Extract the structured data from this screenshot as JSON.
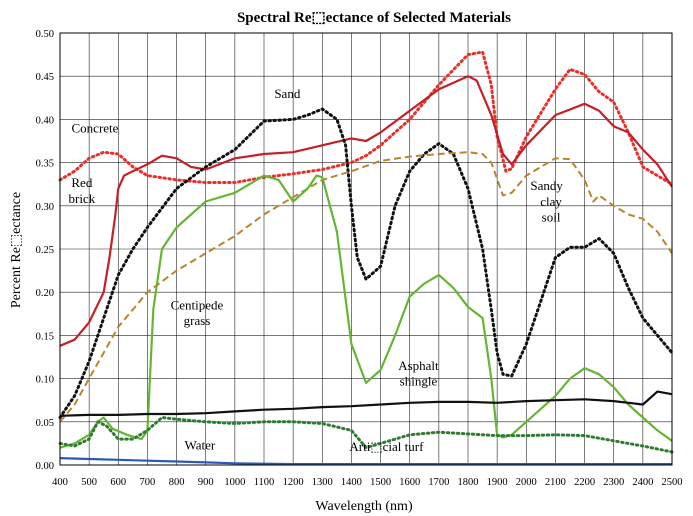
{
  "chart_data": {
    "type": "line",
    "title": "Spectral Re⬚ectance of Selected Materials",
    "xlabel": "Wavelength (nm)",
    "ylabel": "Percent Re⬚ectance",
    "xlim": [
      400,
      2500
    ],
    "ylim": [
      0,
      0.5
    ],
    "x_ticks": [
      400,
      500,
      600,
      700,
      800,
      900,
      1000,
      1100,
      1200,
      1300,
      1400,
      1500,
      1600,
      1700,
      1800,
      1900,
      2000,
      2100,
      2200,
      2300,
      2400,
      2500
    ],
    "y_ticks": [
      "0.00",
      "0.05",
      "0.10",
      "0.15",
      "0.20",
      "0.25",
      "0.30",
      "0.35",
      "0.40",
      "0.45",
      "0.50"
    ],
    "grid": true,
    "legend": "none",
    "series": [
      {
        "name": "Concrete",
        "color": "#e8302a",
        "style": "dotted",
        "points": [
          [
            400,
            0.33
          ],
          [
            450,
            0.34
          ],
          [
            500,
            0.355
          ],
          [
            550,
            0.362
          ],
          [
            600,
            0.36
          ],
          [
            650,
            0.345
          ],
          [
            700,
            0.335
          ],
          [
            800,
            0.33
          ],
          [
            900,
            0.327
          ],
          [
            1000,
            0.327
          ],
          [
            1100,
            0.333
          ],
          [
            1200,
            0.337
          ],
          [
            1300,
            0.342
          ],
          [
            1400,
            0.35
          ],
          [
            1450,
            0.358
          ],
          [
            1500,
            0.37
          ],
          [
            1600,
            0.4
          ],
          [
            1700,
            0.44
          ],
          [
            1800,
            0.475
          ],
          [
            1850,
            0.478
          ],
          [
            1880,
            0.44
          ],
          [
            1900,
            0.38
          ],
          [
            1930,
            0.34
          ],
          [
            1950,
            0.343
          ],
          [
            2000,
            0.38
          ],
          [
            2100,
            0.435
          ],
          [
            2150,
            0.458
          ],
          [
            2200,
            0.452
          ],
          [
            2250,
            0.432
          ],
          [
            2300,
            0.42
          ],
          [
            2350,
            0.385
          ],
          [
            2400,
            0.345
          ],
          [
            2450,
            0.335
          ],
          [
            2500,
            0.325
          ]
        ]
      },
      {
        "name": "Red brick",
        "color": "#c51f28",
        "style": "solid",
        "points": [
          [
            400,
            0.138
          ],
          [
            450,
            0.145
          ],
          [
            500,
            0.165
          ],
          [
            550,
            0.2
          ],
          [
            570,
            0.24
          ],
          [
            590,
            0.29
          ],
          [
            600,
            0.32
          ],
          [
            620,
            0.335
          ],
          [
            650,
            0.34
          ],
          [
            700,
            0.348
          ],
          [
            750,
            0.358
          ],
          [
            800,
            0.355
          ],
          [
            850,
            0.345
          ],
          [
            900,
            0.342
          ],
          [
            1000,
            0.355
          ],
          [
            1100,
            0.36
          ],
          [
            1200,
            0.362
          ],
          [
            1300,
            0.37
          ],
          [
            1400,
            0.378
          ],
          [
            1450,
            0.375
          ],
          [
            1500,
            0.385
          ],
          [
            1600,
            0.41
          ],
          [
            1700,
            0.435
          ],
          [
            1800,
            0.45
          ],
          [
            1830,
            0.445
          ],
          [
            1880,
            0.405
          ],
          [
            1920,
            0.36
          ],
          [
            1950,
            0.348
          ],
          [
            2000,
            0.37
          ],
          [
            2100,
            0.405
          ],
          [
            2200,
            0.418
          ],
          [
            2250,
            0.41
          ],
          [
            2300,
            0.392
          ],
          [
            2350,
            0.385
          ],
          [
            2400,
            0.365
          ],
          [
            2450,
            0.348
          ],
          [
            2500,
            0.322
          ]
        ]
      },
      {
        "name": "Sand",
        "color": "#111111",
        "style": "dotted",
        "points": [
          [
            400,
            0.055
          ],
          [
            450,
            0.08
          ],
          [
            500,
            0.12
          ],
          [
            550,
            0.17
          ],
          [
            600,
            0.22
          ],
          [
            650,
            0.25
          ],
          [
            700,
            0.275
          ],
          [
            800,
            0.32
          ],
          [
            900,
            0.345
          ],
          [
            1000,
            0.365
          ],
          [
            1100,
            0.398
          ],
          [
            1200,
            0.4
          ],
          [
            1250,
            0.405
          ],
          [
            1300,
            0.412
          ],
          [
            1350,
            0.4
          ],
          [
            1380,
            0.37
          ],
          [
            1400,
            0.3
          ],
          [
            1420,
            0.24
          ],
          [
            1450,
            0.215
          ],
          [
            1500,
            0.23
          ],
          [
            1550,
            0.3
          ],
          [
            1600,
            0.34
          ],
          [
            1650,
            0.36
          ],
          [
            1700,
            0.372
          ],
          [
            1750,
            0.36
          ],
          [
            1800,
            0.32
          ],
          [
            1850,
            0.25
          ],
          [
            1880,
            0.18
          ],
          [
            1900,
            0.13
          ],
          [
            1920,
            0.105
          ],
          [
            1950,
            0.103
          ],
          [
            2000,
            0.14
          ],
          [
            2050,
            0.19
          ],
          [
            2100,
            0.24
          ],
          [
            2150,
            0.252
          ],
          [
            2200,
            0.252
          ],
          [
            2250,
            0.262
          ],
          [
            2300,
            0.245
          ],
          [
            2350,
            0.205
          ],
          [
            2400,
            0.17
          ],
          [
            2450,
            0.15
          ],
          [
            2500,
            0.13
          ]
        ]
      },
      {
        "name": "Sandy clay soil",
        "color": "#b8862e",
        "style": "dashed",
        "points": [
          [
            400,
            0.05
          ],
          [
            450,
            0.07
          ],
          [
            500,
            0.1
          ],
          [
            550,
            0.13
          ],
          [
            600,
            0.16
          ],
          [
            650,
            0.18
          ],
          [
            700,
            0.2
          ],
          [
            800,
            0.225
          ],
          [
            900,
            0.245
          ],
          [
            1000,
            0.265
          ],
          [
            1100,
            0.29
          ],
          [
            1200,
            0.31
          ],
          [
            1300,
            0.33
          ],
          [
            1400,
            0.34
          ],
          [
            1500,
            0.352
          ],
          [
            1600,
            0.357
          ],
          [
            1700,
            0.36
          ],
          [
            1800,
            0.362
          ],
          [
            1850,
            0.36
          ],
          [
            1880,
            0.35
          ],
          [
            1920,
            0.312
          ],
          [
            1950,
            0.315
          ],
          [
            2000,
            0.335
          ],
          [
            2100,
            0.355
          ],
          [
            2150,
            0.354
          ],
          [
            2200,
            0.33
          ],
          [
            2230,
            0.305
          ],
          [
            2250,
            0.312
          ],
          [
            2300,
            0.3
          ],
          [
            2350,
            0.29
          ],
          [
            2400,
            0.285
          ],
          [
            2450,
            0.27
          ],
          [
            2500,
            0.245
          ]
        ]
      },
      {
        "name": "Centipede grass",
        "color": "#66b535",
        "style": "solid",
        "points": [
          [
            400,
            0.02
          ],
          [
            450,
            0.025
          ],
          [
            500,
            0.035
          ],
          [
            530,
            0.05
          ],
          [
            550,
            0.055
          ],
          [
            580,
            0.042
          ],
          [
            630,
            0.035
          ],
          [
            680,
            0.03
          ],
          [
            700,
            0.04
          ],
          [
            720,
            0.18
          ],
          [
            750,
            0.25
          ],
          [
            800,
            0.275
          ],
          [
            900,
            0.305
          ],
          [
            1000,
            0.315
          ],
          [
            1100,
            0.335
          ],
          [
            1150,
            0.33
          ],
          [
            1200,
            0.305
          ],
          [
            1250,
            0.32
          ],
          [
            1280,
            0.335
          ],
          [
            1300,
            0.333
          ],
          [
            1350,
            0.27
          ],
          [
            1400,
            0.14
          ],
          [
            1450,
            0.095
          ],
          [
            1500,
            0.11
          ],
          [
            1550,
            0.15
          ],
          [
            1600,
            0.195
          ],
          [
            1650,
            0.21
          ],
          [
            1700,
            0.22
          ],
          [
            1750,
            0.205
          ],
          [
            1800,
            0.183
          ],
          [
            1850,
            0.17
          ],
          [
            1880,
            0.1
          ],
          [
            1900,
            0.035
          ],
          [
            1920,
            0.032
          ],
          [
            1950,
            0.035
          ],
          [
            2000,
            0.05
          ],
          [
            2100,
            0.08
          ],
          [
            2150,
            0.1
          ],
          [
            2200,
            0.112
          ],
          [
            2250,
            0.105
          ],
          [
            2300,
            0.09
          ],
          [
            2350,
            0.07
          ],
          [
            2400,
            0.055
          ],
          [
            2450,
            0.04
          ],
          [
            2500,
            0.028
          ]
        ]
      },
      {
        "name": "Asphalt shingle",
        "color": "#111111",
        "style": "solid",
        "points": [
          [
            400,
            0.057
          ],
          [
            500,
            0.058
          ],
          [
            600,
            0.058
          ],
          [
            700,
            0.059
          ],
          [
            800,
            0.059
          ],
          [
            900,
            0.06
          ],
          [
            1000,
            0.062
          ],
          [
            1100,
            0.064
          ],
          [
            1200,
            0.065
          ],
          [
            1300,
            0.067
          ],
          [
            1400,
            0.068
          ],
          [
            1500,
            0.07
          ],
          [
            1600,
            0.072
          ],
          [
            1700,
            0.073
          ],
          [
            1800,
            0.073
          ],
          [
            1900,
            0.072
          ],
          [
            2000,
            0.074
          ],
          [
            2100,
            0.075
          ],
          [
            2200,
            0.076
          ],
          [
            2300,
            0.074
          ],
          [
            2400,
            0.07
          ],
          [
            2450,
            0.085
          ],
          [
            2500,
            0.082
          ]
        ]
      },
      {
        "name": "Artificial turf",
        "color": "#2e7d32",
        "style": "dotted",
        "points": [
          [
            400,
            0.025
          ],
          [
            450,
            0.022
          ],
          [
            500,
            0.03
          ],
          [
            530,
            0.05
          ],
          [
            560,
            0.045
          ],
          [
            600,
            0.03
          ],
          [
            650,
            0.03
          ],
          [
            700,
            0.04
          ],
          [
            750,
            0.055
          ],
          [
            800,
            0.053
          ],
          [
            900,
            0.05
          ],
          [
            1000,
            0.048
          ],
          [
            1100,
            0.05
          ],
          [
            1200,
            0.05
          ],
          [
            1300,
            0.048
          ],
          [
            1400,
            0.04
          ],
          [
            1450,
            0.02
          ],
          [
            1500,
            0.025
          ],
          [
            1600,
            0.035
          ],
          [
            1700,
            0.038
          ],
          [
            1800,
            0.036
          ],
          [
            1900,
            0.034
          ],
          [
            2000,
            0.034
          ],
          [
            2100,
            0.035
          ],
          [
            2200,
            0.034
          ],
          [
            2300,
            0.028
          ],
          [
            2400,
            0.022
          ],
          [
            2500,
            0.015
          ]
        ]
      },
      {
        "name": "Water",
        "color": "#2a59b8",
        "style": "solid",
        "points": [
          [
            400,
            0.008
          ],
          [
            500,
            0.007
          ],
          [
            600,
            0.006
          ],
          [
            700,
            0.005
          ],
          [
            800,
            0.004
          ],
          [
            900,
            0.003
          ],
          [
            1000,
            0.002
          ],
          [
            1200,
            0.001
          ],
          [
            1400,
            0.001
          ],
          [
            1600,
            0.001
          ],
          [
            1800,
            0.001
          ],
          [
            2000,
            0.001
          ],
          [
            2200,
            0.001
          ],
          [
            2400,
            0.001
          ],
          [
            2500,
            0.001
          ]
        ]
      }
    ],
    "annotations": [
      {
        "text": "Concrete",
        "x": 520,
        "y": 0.385
      },
      {
        "text": "Sand",
        "x": 1180,
        "y": 0.425
      },
      {
        "text": "Red",
        "x": 475,
        "y": 0.322
      },
      {
        "text": "brick",
        "x": 475,
        "y": 0.303
      },
      {
        "text": "Sandy",
        "x": 2070,
        "y": 0.318
      },
      {
        "text": "clay",
        "x": 2085,
        "y": 0.3
      },
      {
        "text": "soil",
        "x": 2085,
        "y": 0.282
      },
      {
        "text": "Centipede",
        "x": 870,
        "y": 0.18
      },
      {
        "text": "grass",
        "x": 870,
        "y": 0.162
      },
      {
        "text": "Asphalt",
        "x": 1630,
        "y": 0.11
      },
      {
        "text": "shingle",
        "x": 1630,
        "y": 0.092
      },
      {
        "text": "Water",
        "x": 880,
        "y": 0.018
      },
      {
        "text": "Arti⬚cial turf",
        "x": 1520,
        "y": 0.016
      }
    ]
  }
}
